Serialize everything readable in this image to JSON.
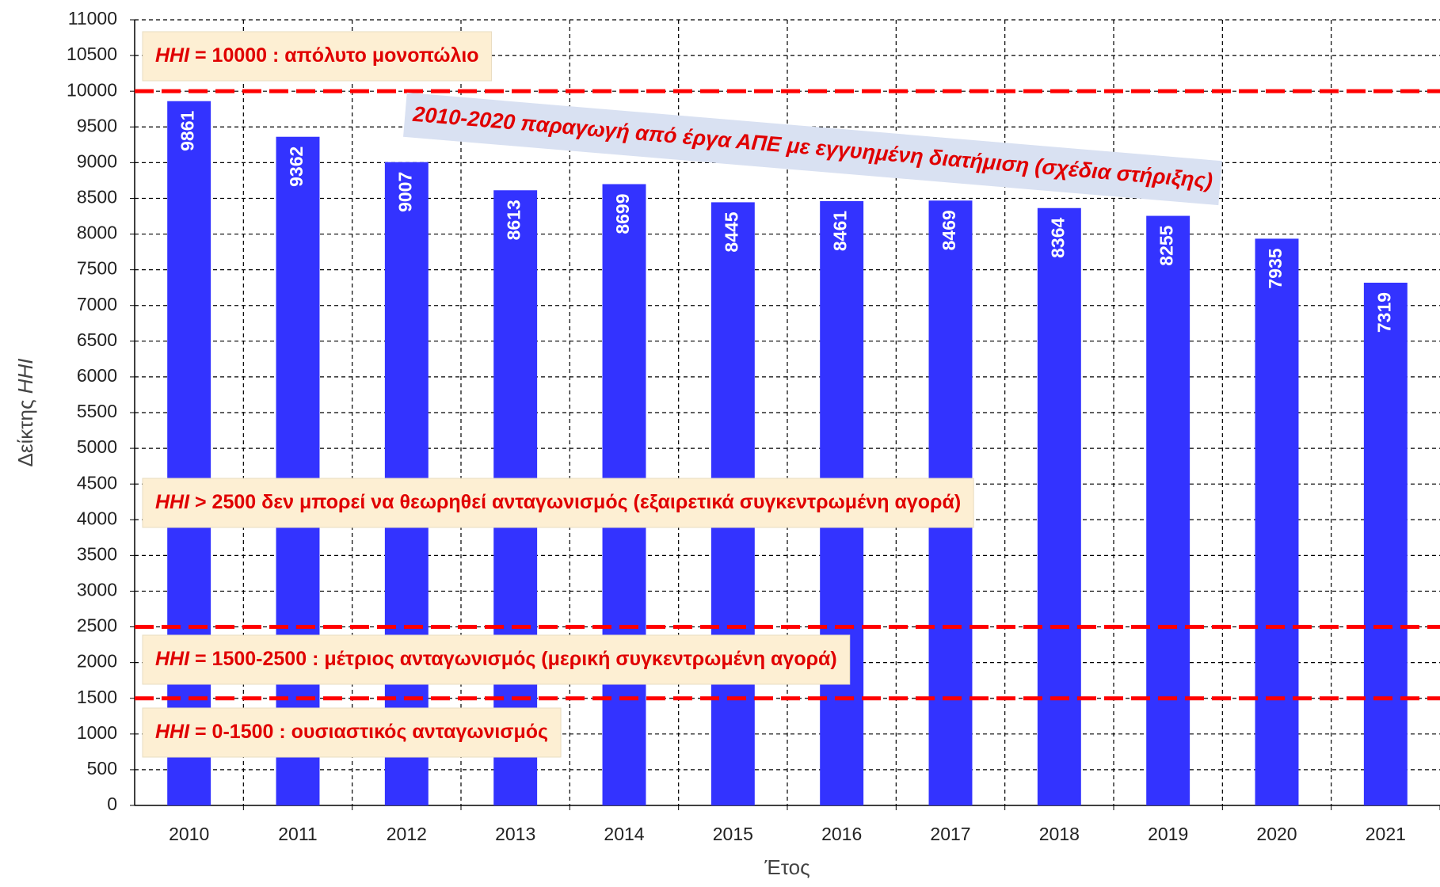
{
  "chart_data": {
    "type": "bar",
    "categories": [
      "2010",
      "2011",
      "2012",
      "2013",
      "2014",
      "2015",
      "2016",
      "2017",
      "2018",
      "2019",
      "2020",
      "2021"
    ],
    "values": [
      9861,
      9362,
      9007,
      8613,
      8699,
      8445,
      8461,
      8469,
      8364,
      8255,
      7935,
      7319
    ],
    "color": "#3333ff",
    "ylim": [
      0,
      11000
    ],
    "yticks": [
      0,
      500,
      1000,
      1500,
      2000,
      2500,
      3000,
      3500,
      4000,
      4500,
      5000,
      5500,
      6000,
      6500,
      7000,
      7500,
      8000,
      8500,
      9000,
      9500,
      10000,
      10500,
      11000
    ],
    "grid": true,
    "x_label": "Έτος",
    "y_label": {
      "text": "Δείκτης",
      "italic": "HHI"
    },
    "reference_lines": {
      "values": [
        10000,
        2500,
        1500
      ],
      "color": "#ff0000"
    },
    "annotations": [
      {
        "italic": "HHI",
        "text": "= 10000 : απόλυτο μονοπώλιο"
      },
      {
        "italic": "HHI",
        "text": "> 2500 δεν μπορεί να θεωρηθεί ανταγωνισμός (εξαιρετικά συγκεντρωμένη αγορά)"
      },
      {
        "italic": "HHI",
        "text": "= 1500-2500 : μέτριος ανταγωνισμός (μερική συγκεντρωμένη αγορά)"
      },
      {
        "italic": "HHI",
        "text": "= 0-1500 : ουσιαστικός ανταγωνισμός"
      }
    ],
    "banner": "2010-2020 παραγωγή από έργα ΑΠΕ με εγγυημένη διατήμιση (σχέδια στήριξης)"
  }
}
